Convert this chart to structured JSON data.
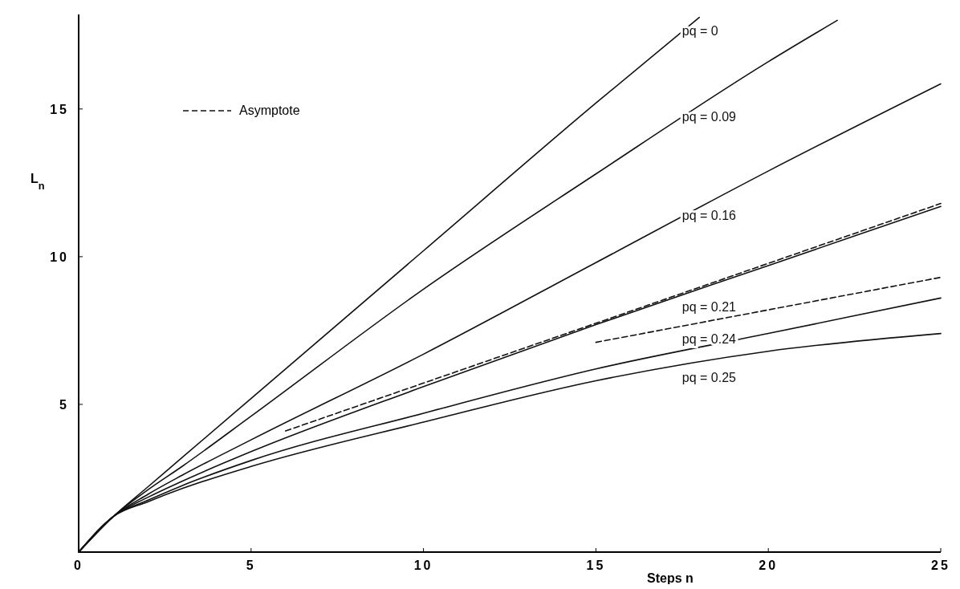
{
  "chart_data": {
    "type": "line",
    "xlabel": "Steps  n",
    "ylabel": "L$_{n}$",
    "xlim": [
      0,
      25
    ],
    "ylim": [
      0,
      18.2
    ],
    "xticks": [
      0,
      5,
      10,
      15,
      20,
      25
    ],
    "yticks": [
      5,
      10,
      15
    ],
    "legend": "top left",
    "grid": false,
    "marker": "none",
    "series": [
      {
        "name": "pq = 0",
        "color": "#111111",
        "line_style": "solid",
        "x": [
          0,
          1,
          2,
          3,
          5,
          10,
          15,
          18
        ],
        "values": [
          0,
          1.2,
          2.2,
          3.2,
          5.2,
          10.2,
          15.2,
          18.1
        ]
      },
      {
        "name": "pq = 0.09",
        "color": "#111111",
        "line_style": "solid",
        "x": [
          0,
          1,
          2,
          3,
          5,
          10,
          15,
          20,
          22
        ],
        "values": [
          0,
          1.2,
          2.1,
          2.9,
          4.6,
          8.9,
          12.8,
          16.6,
          18.0
        ]
      },
      {
        "name": "pq = 0.16",
        "color": "#111111",
        "line_style": "solid",
        "x": [
          0,
          1,
          2,
          3,
          5,
          10,
          15,
          20,
          25
        ],
        "values": [
          0,
          1.2,
          1.95,
          2.6,
          3.8,
          6.7,
          9.8,
          12.9,
          15.85
        ]
      },
      {
        "name": "pq = 0.21",
        "color": "#111111",
        "line_style": "solid",
        "x": [
          0,
          1,
          2,
          3,
          5,
          10,
          15,
          20,
          25
        ],
        "values": [
          0,
          1.2,
          1.85,
          2.4,
          3.4,
          5.6,
          7.7,
          9.7,
          11.7
        ]
      },
      {
        "name": "pq = 0.24",
        "color": "#111111",
        "line_style": "solid",
        "x": [
          0,
          1,
          2,
          3,
          5,
          10,
          15,
          20,
          25
        ],
        "values": [
          0,
          1.2,
          1.75,
          2.25,
          3.1,
          4.7,
          6.2,
          7.4,
          8.6
        ]
      },
      {
        "name": "pq = 0.25",
        "color": "#111111",
        "line_style": "solid",
        "x": [
          0,
          1,
          2,
          3,
          5,
          10,
          15,
          20,
          25
        ],
        "values": [
          0,
          1.2,
          1.7,
          2.15,
          2.9,
          4.4,
          5.8,
          6.8,
          7.4
        ]
      },
      {
        "name": "Asymptote",
        "color": "#111111",
        "line_style": "dashed",
        "x": [
          6,
          25
        ],
        "values": [
          4.1,
          11.8
        ]
      },
      {
        "color": "#111111",
        "line_style": "dashed",
        "x": [
          15,
          25
        ],
        "values": [
          7.1,
          9.3
        ]
      }
    ]
  }
}
